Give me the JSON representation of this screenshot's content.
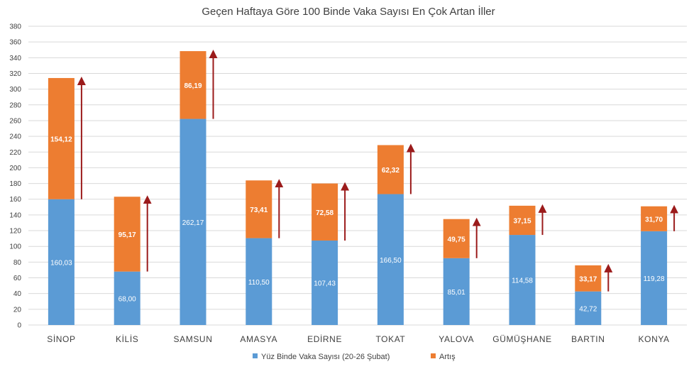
{
  "chart_data": {
    "type": "bar",
    "stacked": true,
    "title": "Geçen Haftaya Göre 100 Binde Vaka Sayısı En Çok Artan İller",
    "categories": [
      "SİNOP",
      "KİLİS",
      "SAMSUN",
      "AMASYA",
      "EDİRNE",
      "TOKAT",
      "YALOVA",
      "GÜMÜŞHANE",
      "BARTIN",
      "KONYA"
    ],
    "series": [
      {
        "name": "Yüz Binde Vaka Sayısı (20-26 Şubat)",
        "color": "#5B9BD5",
        "values": [
          160.03,
          68.0,
          262.17,
          110.5,
          107.43,
          166.5,
          85.01,
          114.58,
          42.72,
          119.28
        ],
        "labels": [
          "160,03",
          "68,00",
          "262,17",
          "110,50",
          "107,43",
          "166,50",
          "85,01",
          "114,58",
          "42,72",
          "119,28"
        ]
      },
      {
        "name": "Artış",
        "color": "#ED7D31",
        "values": [
          154.12,
          95.17,
          86.19,
          73.41,
          72.58,
          62.32,
          49.75,
          37.15,
          33.17,
          31.7
        ],
        "labels": [
          "154,12",
          "95,17",
          "86,19",
          "73,41",
          "72,58",
          "62,32",
          "49,75",
          "37,15",
          "33,17",
          "31,70"
        ]
      }
    ],
    "yticks": [
      "0",
      "20",
      "40",
      "60",
      "80",
      "100",
      "120",
      "140",
      "160",
      "180",
      "200",
      "220",
      "240",
      "260",
      "280",
      "300",
      "320",
      "340",
      "360",
      "380"
    ],
    "ylim": [
      0,
      380
    ],
    "grid": true,
    "legend_position": "bottom",
    "arrow_color": "#9B1B1B"
  }
}
